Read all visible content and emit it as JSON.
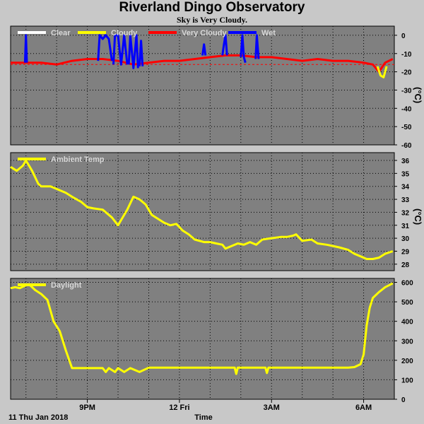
{
  "title": "Riverland Dingo Observatory",
  "subtitle": "Sky is Very Cloudy.",
  "x_axis": {
    "label": "Time",
    "date_label": "11 Thu Jan 2018",
    "ticks": [
      {
        "t": 2.5,
        "label": "9PM"
      },
      {
        "t": 5.5,
        "label": "12 Fri"
      },
      {
        "t": 8.5,
        "label": "3AM"
      },
      {
        "t": 11.5,
        "label": "6AM"
      }
    ],
    "range": [
      0,
      12.5
    ]
  },
  "colors": {
    "panel_bg": "#808080",
    "page_bg": "#c8c8c8",
    "grid": "#000000",
    "clear": "#ffffff",
    "cloudy": "#ffff00",
    "very_cloudy": "#ff0000",
    "wet": "#0000ff",
    "threshold": "#ff0000"
  },
  "chart_data": [
    {
      "type": "line",
      "id": "sky",
      "unit_label": "(°C)",
      "ylim": [
        -60,
        5
      ],
      "yticks": [
        0,
        -10,
        -20,
        -30,
        -40,
        -50,
        -60
      ],
      "grid": true,
      "legend": [
        {
          "label": "Clear",
          "color": "#ffffff"
        },
        {
          "label": "Cloudy",
          "color": "#ffff00"
        },
        {
          "label": "Very Cloudy",
          "color": "#ff0000"
        },
        {
          "label": "Wet",
          "color": "#0000ff"
        }
      ],
      "threshold": -16,
      "series": [
        {
          "name": "Very Cloudy",
          "color": "#ff0000",
          "x": [
            0,
            0.5,
            1.0,
            1.5,
            2.0,
            2.5,
            3.0,
            3.5,
            4.0,
            4.5,
            5.0,
            5.5,
            6.0,
            6.5,
            7.0,
            7.5,
            8.0,
            8.5,
            9.0,
            9.5,
            10.0,
            10.5,
            11.0,
            11.5,
            11.8,
            12.0,
            12.2,
            12.45
          ],
          "y": [
            -15,
            -15,
            -15,
            -16,
            -14,
            -13,
            -13,
            -14,
            -16,
            -15,
            -14,
            -14,
            -13,
            -12,
            -11,
            -11,
            -12,
            -12,
            -13,
            -14,
            -13,
            -14,
            -14,
            -15,
            -16,
            -20,
            -15,
            -13
          ]
        },
        {
          "name": "Cloudy",
          "color": "#ffff00",
          "x": [
            11.95,
            12.05,
            12.15,
            12.25
          ],
          "y": [
            -17,
            -22,
            -23,
            -17
          ]
        },
        {
          "name": "Wet",
          "color": "#0000ff",
          "segments": [
            {
              "x": [
                0.47,
                0.5,
                0.53
              ],
              "y": [
                -15,
                0,
                -15
              ]
            },
            {
              "x": [
                2.85,
                2.9,
                3.0,
                3.1,
                3.2,
                3.3
              ],
              "y": [
                -14,
                0,
                -2,
                0,
                -2,
                -14
              ]
            },
            {
              "x": [
                3.35,
                3.4,
                3.5,
                3.6,
                3.7,
                3.8
              ],
              "y": [
                -16,
                0,
                0,
                -16,
                0,
                -16
              ]
            },
            {
              "x": [
                3.85,
                3.9,
                4.0,
                4.1,
                4.15
              ],
              "y": [
                -16,
                0,
                -18,
                0,
                -18
              ]
            },
            {
              "x": [
                4.2,
                4.25,
                4.3
              ],
              "y": [
                -17,
                -3,
                -17
              ]
            },
            {
              "x": [
                6.25,
                6.3,
                6.35
              ],
              "y": [
                -11,
                -5,
                -11
              ]
            },
            {
              "x": [
                6.9,
                6.95,
                7.0,
                7.05
              ],
              "y": [
                -11,
                -5,
                0,
                -11
              ]
            },
            {
              "x": [
                7.5,
                7.55,
                7.6,
                7.65
              ],
              "y": [
                -12,
                0,
                -12,
                -15
              ]
            },
            {
              "x": [
                7.98,
                8.02,
                8.08
              ],
              "y": [
                -13,
                0,
                -13
              ]
            }
          ]
        }
      ]
    },
    {
      "type": "line",
      "id": "ambient",
      "unit_label": "(°C)",
      "ylim": [
        27.5,
        36.6
      ],
      "yticks": [
        28,
        29,
        30,
        31,
        32,
        33,
        34,
        35,
        36
      ],
      "grid": true,
      "legend": [
        {
          "label": "Ambient Temp",
          "color": "#ffff00"
        }
      ],
      "series": [
        {
          "name": "Ambient Temp",
          "color": "#ffff00",
          "x": [
            0,
            0.2,
            0.4,
            0.5,
            0.7,
            0.9,
            1.0,
            1.3,
            1.5,
            1.8,
            2.0,
            2.3,
            2.5,
            2.7,
            3.0,
            3.3,
            3.5,
            3.7,
            3.8,
            4.0,
            4.2,
            4.4,
            4.6,
            4.8,
            5.0,
            5.2,
            5.4,
            5.6,
            5.8,
            6.0,
            6.3,
            6.5,
            6.7,
            6.9,
            7.0,
            7.2,
            7.4,
            7.6,
            7.8,
            8.0,
            8.2,
            8.5,
            8.8,
            9.0,
            9.2,
            9.3,
            9.5,
            9.8,
            10.0,
            10.3,
            10.5,
            10.7,
            11.0,
            11.2,
            11.4,
            11.6,
            11.8,
            12.0,
            12.2,
            12.45
          ],
          "y": [
            35.5,
            35.2,
            35.6,
            36.0,
            35.2,
            34.2,
            34.0,
            34.0,
            33.8,
            33.5,
            33.2,
            32.8,
            32.4,
            32.3,
            32.2,
            31.6,
            31.0,
            31.8,
            32.2,
            33.2,
            33.0,
            32.6,
            31.8,
            31.5,
            31.2,
            31.0,
            31.1,
            30.6,
            30.3,
            29.9,
            29.7,
            29.7,
            29.6,
            29.5,
            29.2,
            29.4,
            29.6,
            29.5,
            29.7,
            29.5,
            29.9,
            30.0,
            30.1,
            30.1,
            30.2,
            30.3,
            29.8,
            29.9,
            29.6,
            29.5,
            29.4,
            29.3,
            29.1,
            28.8,
            28.6,
            28.4,
            28.4,
            28.5,
            28.8,
            29.0
          ]
        }
      ]
    },
    {
      "type": "line",
      "id": "daylight",
      "unit_label": "",
      "ylim": [
        0,
        620
      ],
      "yticks": [
        0,
        100,
        200,
        300,
        400,
        500,
        600
      ],
      "grid": true,
      "legend": [
        {
          "label": "Daylight",
          "color": "#ffff00"
        }
      ],
      "series": [
        {
          "name": "Daylight",
          "color": "#ffff00",
          "x": [
            0,
            0.15,
            0.3,
            0.5,
            0.6,
            0.8,
            1.0,
            1.2,
            1.4,
            1.6,
            1.8,
            2.0,
            2.2,
            2.5,
            2.8,
            3.0,
            3.1,
            3.2,
            3.4,
            3.5,
            3.7,
            3.9,
            4.2,
            4.5,
            5.0,
            5.5,
            6.0,
            6.5,
            7.0,
            7.3,
            7.35,
            7.4,
            7.5,
            8.0,
            8.3,
            8.35,
            8.4,
            8.5,
            9.0,
            9.5,
            10.0,
            10.5,
            11.0,
            11.2,
            11.4,
            11.5,
            11.6,
            11.7,
            11.8,
            12.0,
            12.2,
            12.45
          ],
          "y": [
            570,
            575,
            570,
            585,
            590,
            560,
            540,
            510,
            400,
            350,
            250,
            160,
            160,
            160,
            160,
            160,
            140,
            160,
            140,
            160,
            140,
            160,
            140,
            162,
            162,
            162,
            162,
            162,
            162,
            162,
            130,
            162,
            162,
            162,
            162,
            135,
            162,
            162,
            162,
            162,
            162,
            162,
            162,
            165,
            180,
            230,
            380,
            470,
            520,
            550,
            575,
            595
          ]
        }
      ]
    }
  ]
}
